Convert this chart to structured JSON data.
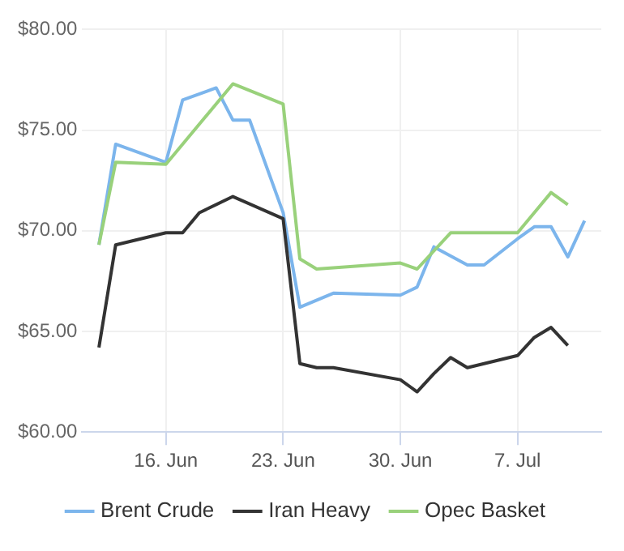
{
  "chart_data": {
    "type": "line",
    "xlim": [
      "--06-11",
      "--07-12"
    ],
    "xticks": [
      {
        "value": "--06-16",
        "label": "16. Jun"
      },
      {
        "value": "--06-23",
        "label": "23. Jun"
      },
      {
        "value": "--06-30",
        "label": "30. Jun"
      },
      {
        "value": "--07-07",
        "label": "7. Jul"
      }
    ],
    "ylim": [
      60,
      80
    ],
    "yticks": [
      {
        "value": 60,
        "label": "$60.00"
      },
      {
        "value": 65,
        "label": "$65.00"
      },
      {
        "value": 70,
        "label": "$70.00"
      },
      {
        "value": 75,
        "label": "$75.00"
      },
      {
        "value": 80,
        "label": "$80.00"
      }
    ],
    "grid": true,
    "legend": "bottom",
    "marker": "none",
    "line_style": "solid",
    "series": [
      {
        "name": "Brent Crude",
        "color": "#7cb5ec",
        "x": [
          "--06-12",
          "--06-13",
          "--06-16",
          "--06-17",
          "--06-19",
          "--06-20",
          "--06-21",
          "--06-23",
          "--06-24",
          "--06-26",
          "--06-30",
          "--07-01",
          "--07-02",
          "--07-04",
          "--07-05",
          "--07-07",
          "--07-08",
          "--07-09",
          "--07-10",
          "--07-11"
        ],
        "values": [
          69.3,
          74.3,
          73.4,
          76.5,
          77.1,
          75.5,
          75.5,
          70.9,
          66.2,
          66.9,
          66.8,
          67.2,
          69.2,
          68.3,
          68.3,
          69.6,
          70.2,
          70.2,
          68.7,
          70.5
        ]
      },
      {
        "name": "Iran Heavy",
        "color": "#333333",
        "x": [
          "--06-12",
          "--06-13",
          "--06-16",
          "--06-17",
          "--06-18",
          "--06-20",
          "--06-23",
          "--06-24",
          "--06-25",
          "--06-26",
          "--06-30",
          "--07-01",
          "--07-02",
          "--07-03",
          "--07-04",
          "--07-07",
          "--07-08",
          "--07-09",
          "--07-10"
        ],
        "values": [
          64.2,
          69.3,
          69.9,
          69.9,
          70.9,
          71.7,
          70.6,
          63.4,
          63.2,
          63.2,
          62.6,
          62.0,
          62.9,
          63.7,
          63.2,
          63.8,
          64.7,
          65.2,
          64.3
        ]
      },
      {
        "name": "Opec Basket",
        "color": "#99d17b",
        "x": [
          "--06-12",
          "--06-13",
          "--06-16",
          "--06-20",
          "--06-23",
          "--06-24",
          "--06-25",
          "--06-30",
          "--07-01",
          "--07-03",
          "--07-07",
          "--07-09",
          "--07-10"
        ],
        "values": [
          69.3,
          73.4,
          73.3,
          77.3,
          76.3,
          68.6,
          68.1,
          68.4,
          68.1,
          69.9,
          69.9,
          71.9,
          71.3
        ]
      }
    ]
  }
}
